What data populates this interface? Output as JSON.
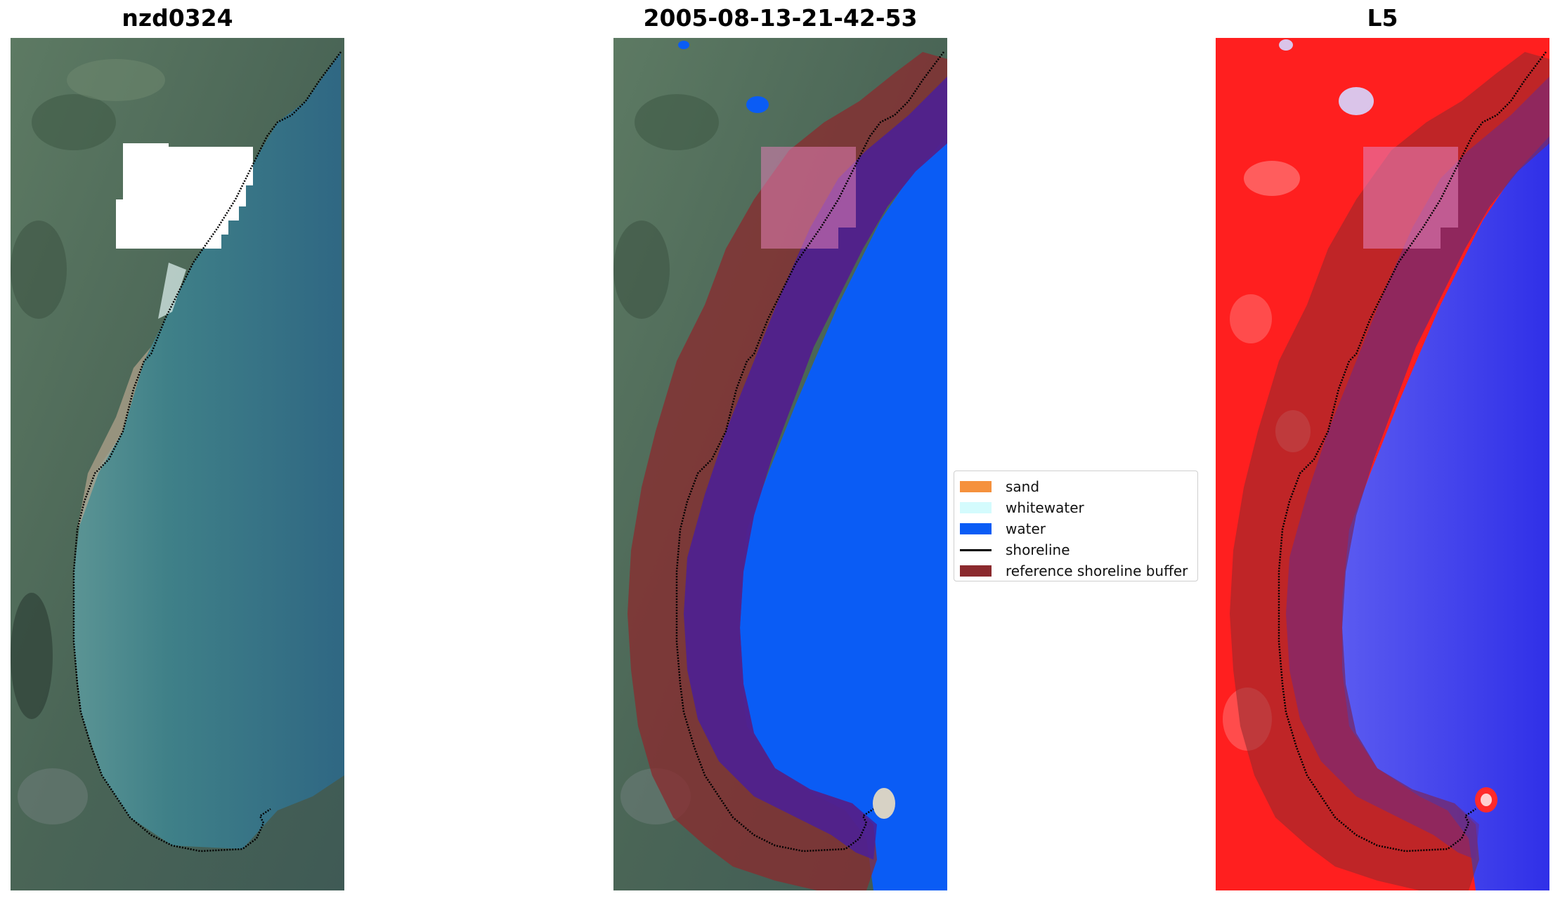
{
  "panels": [
    {
      "title": "nzd0324"
    },
    {
      "title": "2005-08-13-21-42-53"
    },
    {
      "title": "L5"
    }
  ],
  "legend": {
    "items": [
      {
        "label": "sand",
        "color": "#f5913d",
        "kind": "patch"
      },
      {
        "label": "whitewater",
        "color": "#d4fbfd",
        "kind": "patch"
      },
      {
        "label": "water",
        "color": "#0a5cf5",
        "kind": "patch"
      },
      {
        "label": "shoreline",
        "color": "#000000",
        "kind": "line"
      },
      {
        "label": "reference shoreline buffer",
        "color": "#8b2a2e",
        "kind": "patch"
      }
    ]
  },
  "colors": {
    "land": "#4f6a5a",
    "sea_rgb": "#3d7c8a",
    "water_class": "#0a5cf5",
    "buffer": "#8b2a2e",
    "index_positive": "#ff1a1a",
    "index_negative": "#3333ee"
  }
}
